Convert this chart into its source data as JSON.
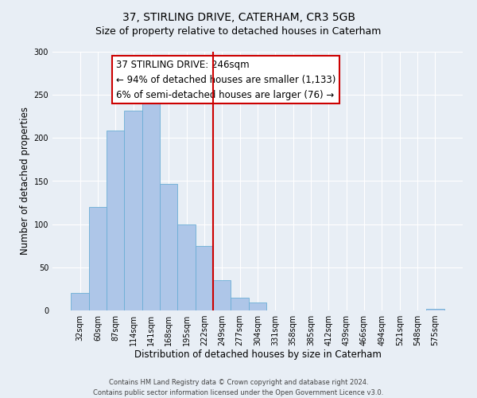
{
  "title": "37, STIRLING DRIVE, CATERHAM, CR3 5GB",
  "subtitle": "Size of property relative to detached houses in Caterham",
  "xlabel": "Distribution of detached houses by size in Caterham",
  "ylabel": "Number of detached properties",
  "bar_labels": [
    "32sqm",
    "60sqm",
    "87sqm",
    "114sqm",
    "141sqm",
    "168sqm",
    "195sqm",
    "222sqm",
    "249sqm",
    "277sqm",
    "304sqm",
    "331sqm",
    "358sqm",
    "385sqm",
    "412sqm",
    "439sqm",
    "466sqm",
    "494sqm",
    "521sqm",
    "548sqm",
    "575sqm"
  ],
  "bar_values": [
    20,
    120,
    209,
    232,
    250,
    147,
    100,
    75,
    35,
    15,
    9,
    0,
    0,
    0,
    0,
    0,
    0,
    0,
    0,
    0,
    2
  ],
  "bar_color": "#aec6e8",
  "bar_edgecolor": "#6baed6",
  "vline_x": 7.5,
  "vline_color": "#cc0000",
  "annotation_text_line1": "37 STIRLING DRIVE: 246sqm",
  "annotation_text_line2": "← 94% of detached houses are smaller (1,133)",
  "annotation_text_line3": "6% of semi-detached houses are larger (76) →",
  "ylim": [
    0,
    300
  ],
  "yticks": [
    0,
    50,
    100,
    150,
    200,
    250,
    300
  ],
  "bg_color": "#e8eef5",
  "plot_bg_color": "#e8eef5",
  "footer_line1": "Contains HM Land Registry data © Crown copyright and database right 2024.",
  "footer_line2": "Contains public sector information licensed under the Open Government Licence v3.0.",
  "title_fontsize": 10,
  "xlabel_fontsize": 8.5,
  "ylabel_fontsize": 8.5,
  "tick_fontsize": 7,
  "annotation_fontsize": 8.5,
  "footer_fontsize": 6
}
